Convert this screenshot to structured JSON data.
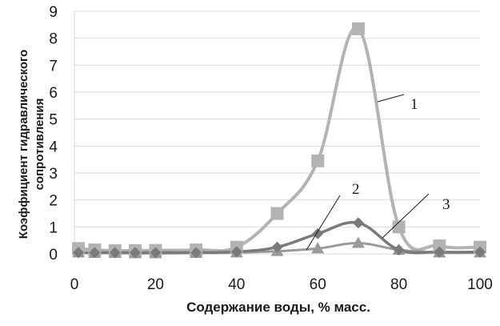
{
  "chart_data": {
    "type": "line",
    "xlabel": "Содержание воды, % масс.",
    "ylabel_line1": "Коэффициент гидравлического",
    "ylabel_line2": "сопротивления",
    "xlim": [
      0,
      100
    ],
    "ylim": [
      0,
      9
    ],
    "xticks": [
      "0",
      "20",
      "40",
      "60",
      "80",
      "100"
    ],
    "yticks": [
      "0",
      "1",
      "2",
      "3",
      "4",
      "5",
      "6",
      "7",
      "8",
      "9"
    ],
    "grid": "horizontal",
    "series": [
      {
        "label": "1",
        "color": "#b3b3b3",
        "marker": "square",
        "x": [
          1,
          5,
          10,
          15,
          20,
          30,
          40,
          50,
          60,
          70,
          80,
          90,
          100
        ],
        "y": [
          0.2,
          0.15,
          0.12,
          0.12,
          0.13,
          0.15,
          0.25,
          1.5,
          3.45,
          8.35,
          1.0,
          0.3,
          0.25
        ]
      },
      {
        "label": "2",
        "color": "#7a7a7a",
        "marker": "diamond",
        "x": [
          1,
          5,
          10,
          15,
          20,
          30,
          40,
          50,
          60,
          70,
          80,
          90,
          100
        ],
        "y": [
          0.05,
          0.05,
          0.05,
          0.05,
          0.05,
          0.05,
          0.08,
          0.25,
          0.75,
          1.15,
          0.15,
          0.07,
          0.07
        ]
      },
      {
        "label": "3",
        "color": "#9a9a9a",
        "marker": "triangle",
        "x": [
          1,
          5,
          10,
          15,
          20,
          30,
          40,
          50,
          60,
          70,
          80,
          90,
          100
        ],
        "y": [
          0.05,
          0.03,
          0.03,
          0.02,
          0.02,
          0.03,
          0.05,
          0.1,
          0.2,
          0.4,
          0.15,
          0.05,
          0.05
        ]
      }
    ]
  }
}
